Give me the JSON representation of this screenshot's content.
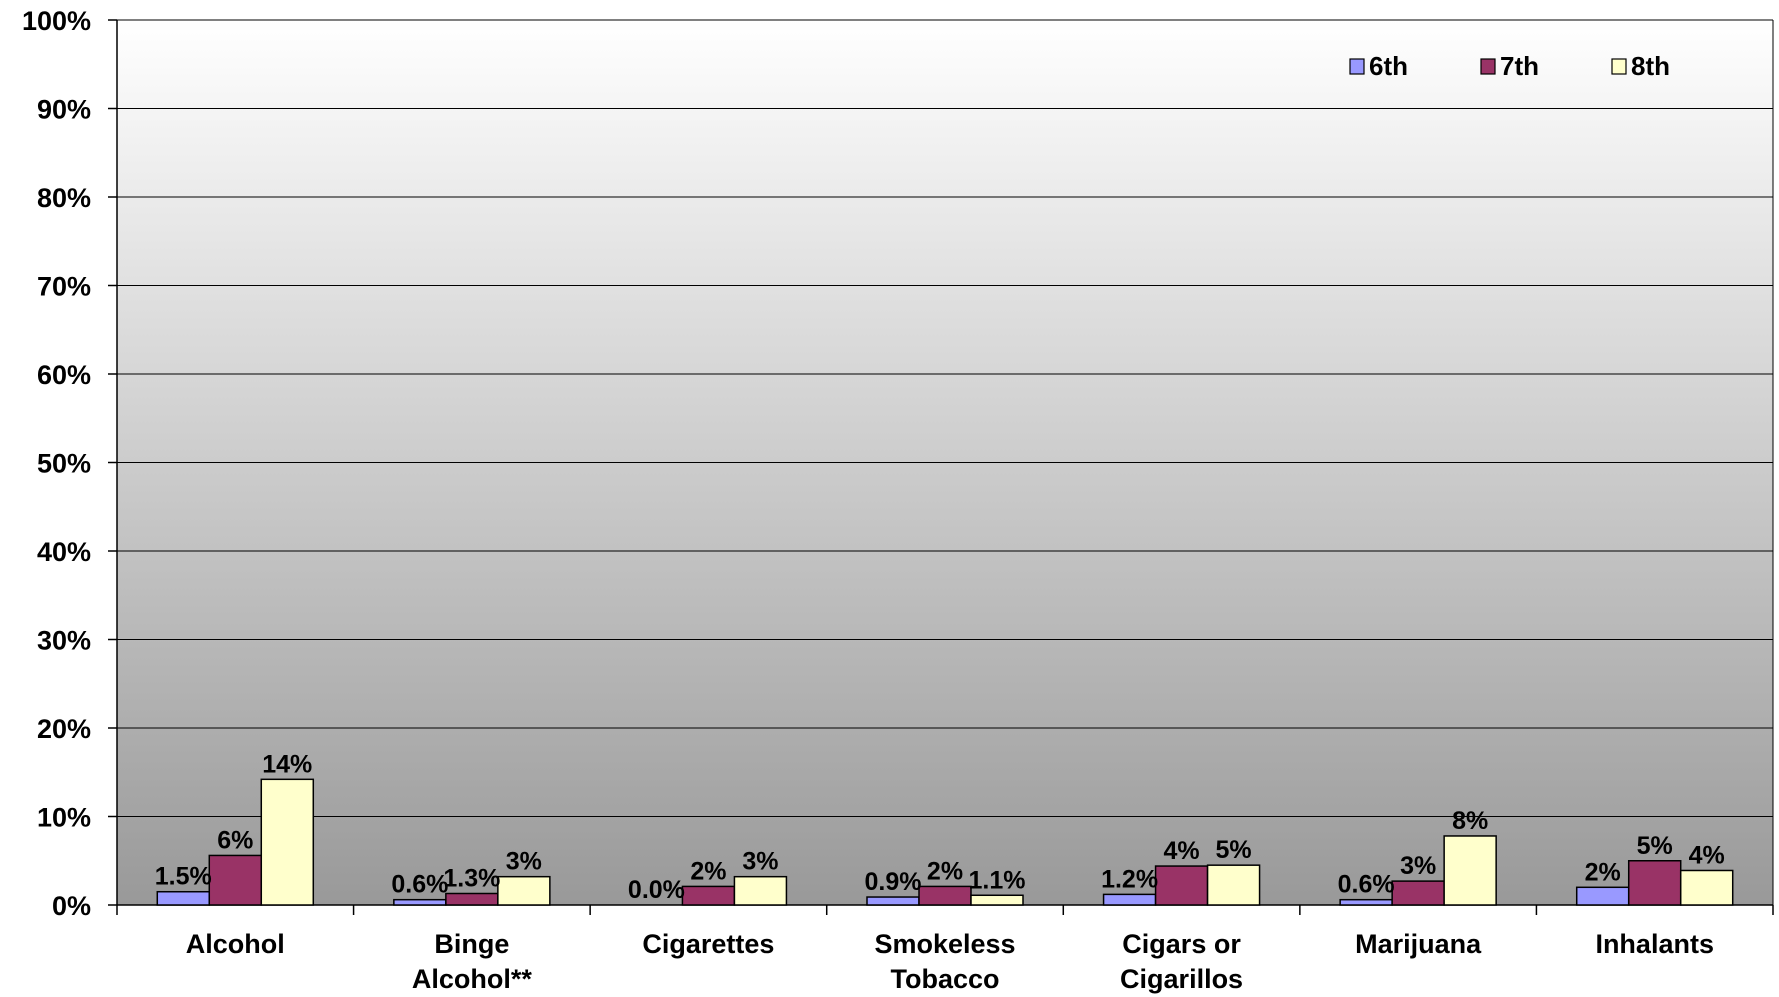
{
  "chart_data": {
    "type": "bar",
    "categories": [
      [
        "Alcohol"
      ],
      [
        "Binge",
        "Alcohol**"
      ],
      [
        "Cigarettes"
      ],
      [
        "Smokeless",
        "Tobacco"
      ],
      [
        "Cigars or",
        "Cigarillos"
      ],
      [
        "Marijuana"
      ],
      [
        "Inhalants"
      ]
    ],
    "series": [
      {
        "name": "6th",
        "color": "#9999ff",
        "values": [
          1.5,
          0.6,
          0.0,
          0.9,
          1.2,
          0.6,
          2.0
        ],
        "labels": [
          "1.5%",
          "0.6%",
          "0.0%",
          "0.9%",
          "1.2%",
          "0.6%",
          "2%"
        ]
      },
      {
        "name": "7th",
        "color": "#993366",
        "values": [
          5.6,
          1.3,
          2.1,
          2.1,
          4.4,
          2.7,
          5.0
        ],
        "labels": [
          "6%",
          "1.3%",
          "2%",
          "2%",
          "4%",
          "3%",
          "5%"
        ]
      },
      {
        "name": "8th",
        "color": "#ffffcc",
        "values": [
          14.2,
          3.2,
          3.2,
          1.1,
          4.5,
          7.8,
          3.9
        ],
        "labels": [
          "14%",
          "3%",
          "3%",
          "1.1%",
          "5%",
          "8%",
          "4%"
        ]
      }
    ],
    "yticks": [
      "0%",
      "10%",
      "20%",
      "30%",
      "40%",
      "50%",
      "60%",
      "70%",
      "80%",
      "90%",
      "100%"
    ],
    "ylim": [
      0,
      100
    ],
    "grid": true,
    "legend": "top-right",
    "background_gradient": [
      "#ffffff",
      "#999999"
    ]
  }
}
